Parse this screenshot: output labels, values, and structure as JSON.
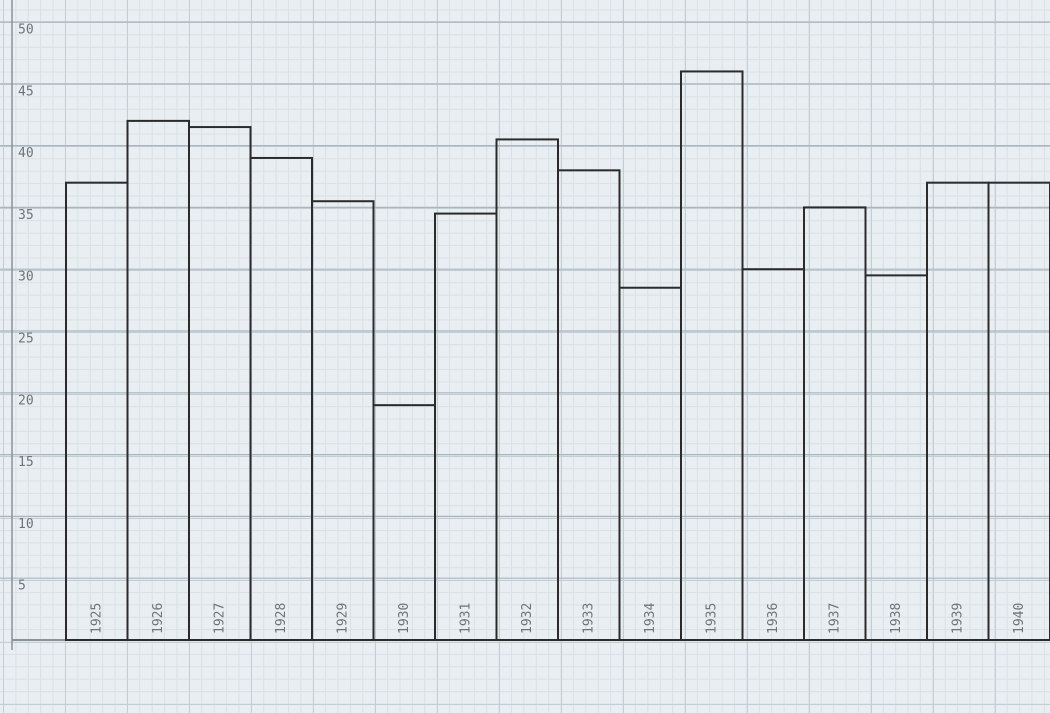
{
  "chart_data": {
    "type": "bar",
    "categories": [
      "1925",
      "1926",
      "1927",
      "1928",
      "1929",
      "1930",
      "1931",
      "1932",
      "1933",
      "1934",
      "1935",
      "1936",
      "1937",
      "1938",
      "1939",
      "1940"
    ],
    "values": [
      37,
      42,
      41.5,
      39,
      35.5,
      19,
      34.5,
      40.5,
      38,
      28.5,
      46,
      30,
      35,
      29.5,
      37,
      37
    ],
    "color": "#2b2b2b",
    "ylim": [
      0,
      50
    ],
    "yticks": [
      5,
      10,
      15,
      20,
      25,
      30,
      35,
      40,
      45,
      50
    ],
    "grid": true
  }
}
